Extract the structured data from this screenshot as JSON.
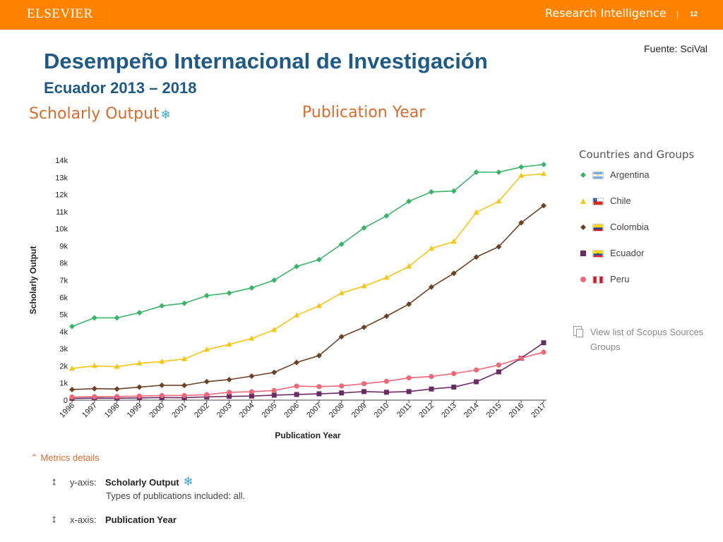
{
  "header": {
    "brand": "ELSEVIER",
    "product": "Research Intelligence",
    "separator": "|",
    "slide_number": "12",
    "color": "#ff8200"
  },
  "source": "Fuente: SciVal",
  "title": "Desempeño Internacional de Investigación",
  "subtitle": "Ecuador 2013 – 2018",
  "metric_title": "Scholarly Output",
  "metric_icon": "snowflake-icon",
  "x_title_top": "Publication Year",
  "legend": {
    "title": "Countries and Groups",
    "items": [
      {
        "label": "Argentina",
        "marker": "diamond",
        "color": "#3bb36a",
        "flag": "argentina-flag-icon"
      },
      {
        "label": "Chile",
        "marker": "triangle",
        "color": "#f5c518",
        "flag": "chile-flag-icon"
      },
      {
        "label": "Colombia",
        "marker": "diamond",
        "color": "#6b4226",
        "flag": "colombia-flag-icon"
      },
      {
        "label": "Ecuador",
        "marker": "square",
        "color": "#6a2a62",
        "flag": "ecuador-flag-icon"
      },
      {
        "label": "Peru",
        "marker": "circle",
        "color": "#f0677a",
        "flag": "peru-flag-icon"
      }
    ]
  },
  "view_list": {
    "line1": "View list of Scopus Sources",
    "line2": "Groups"
  },
  "metrics_details": {
    "toggle": "Metrics details",
    "y_axis_label": "y-axis:",
    "y_axis_value": "Scholarly Output",
    "y_axis_desc": "Types of publications included: all.",
    "x_axis_label": "x-axis:",
    "x_axis_value": "Publication Year"
  },
  "chart_data": {
    "type": "line",
    "x": [
      "1996",
      "1997",
      "1998",
      "1999",
      "2000",
      "2001",
      "2002",
      "2003",
      "2004",
      "2005",
      "2006",
      "2007",
      "2008",
      "2009",
      "2010",
      "2011",
      "2012",
      "2013",
      "2014",
      "2015",
      "2016",
      "2017"
    ],
    "xlabel": "Publication Year",
    "ylabel": "Scholarly Output",
    "ylim": [
      0,
      14000
    ],
    "yticks": [
      0,
      1000,
      2000,
      3000,
      4000,
      5000,
      6000,
      7000,
      8000,
      9000,
      10000,
      11000,
      12000,
      13000,
      14000
    ],
    "ytick_labels": [
      "0",
      "1k",
      "2k",
      "3k",
      "4k",
      "5k",
      "6k",
      "7k",
      "8k",
      "9k",
      "10k",
      "11k",
      "12k",
      "13k",
      "14k"
    ],
    "grid": false,
    "legend_position": "right",
    "series": [
      {
        "name": "Argentina",
        "color": "#3bb36a",
        "marker": "diamond",
        "values": [
          4300,
          4800,
          4800,
          5100,
          5500,
          5650,
          6100,
          6250,
          6550,
          7000,
          7800,
          8200,
          9100,
          10050,
          10750,
          11600,
          12150,
          12200,
          13300,
          13300,
          13600,
          13750
        ]
      },
      {
        "name": "Chile",
        "color": "#f5c518",
        "marker": "triangle",
        "values": [
          1850,
          2000,
          1950,
          2150,
          2250,
          2400,
          2950,
          3250,
          3600,
          4100,
          4950,
          5500,
          6250,
          6650,
          7150,
          7800,
          8850,
          9250,
          10950,
          11600,
          13100,
          13200
        ]
      },
      {
        "name": "Colombia",
        "color": "#6b4226",
        "marker": "diamond",
        "values": [
          620,
          670,
          650,
          760,
          870,
          860,
          1080,
          1200,
          1400,
          1620,
          2200,
          2600,
          3700,
          4250,
          4900,
          5600,
          6600,
          7400,
          8350,
          8950,
          10350,
          11350
        ]
      },
      {
        "name": "Ecuador",
        "color": "#6a2a62",
        "marker": "square",
        "values": [
          100,
          120,
          110,
          130,
          150,
          140,
          190,
          220,
          240,
          290,
          330,
          370,
          420,
          500,
          460,
          500,
          650,
          760,
          1070,
          1650,
          2450,
          3350
        ]
      },
      {
        "name": "Peru",
        "color": "#f0677a",
        "marker": "circle",
        "values": [
          180,
          200,
          210,
          240,
          270,
          270,
          320,
          460,
          490,
          560,
          820,
          790,
          830,
          960,
          1100,
          1300,
          1380,
          1550,
          1760,
          2050,
          2450,
          2800
        ]
      }
    ]
  }
}
